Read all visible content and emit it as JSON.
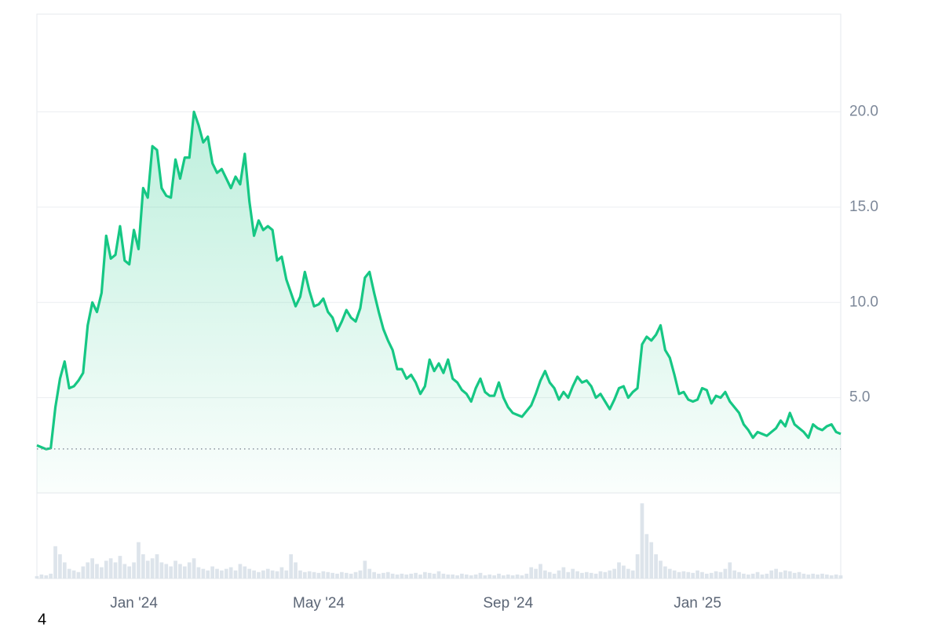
{
  "chart_data": {
    "type": "line",
    "categories": [
      null,
      null,
      null,
      null,
      null,
      null,
      null,
      null,
      null,
      null,
      null,
      null,
      null,
      null,
      null,
      null,
      null,
      null,
      null,
      null,
      null,
      "Jan '24",
      null,
      null,
      null,
      null,
      null,
      null,
      null,
      null,
      null,
      null,
      null,
      null,
      null,
      null,
      null,
      null,
      null,
      null,
      null,
      null,
      null,
      null,
      null,
      null,
      null,
      null,
      null,
      null,
      null,
      null,
      null,
      null,
      null,
      null,
      null,
      null,
      null,
      null,
      null,
      "May '24",
      null,
      null,
      null,
      null,
      null,
      null,
      null,
      null,
      null,
      null,
      null,
      null,
      null,
      null,
      null,
      null,
      null,
      null,
      null,
      null,
      null,
      null,
      null,
      null,
      null,
      null,
      null,
      null,
      null,
      null,
      null,
      null,
      null,
      null,
      null,
      null,
      null,
      null,
      null,
      null,
      "Sep '24",
      null,
      null,
      null,
      null,
      null,
      null,
      null,
      null,
      null,
      null,
      null,
      null,
      null,
      null,
      null,
      null,
      null,
      null,
      null,
      null,
      null,
      null,
      null,
      null,
      null,
      null,
      null,
      null,
      null,
      null,
      null,
      null,
      null,
      null,
      null,
      null,
      null,
      null,
      null,
      null,
      "Jan '25",
      null,
      null,
      null,
      null,
      null,
      null,
      null,
      null,
      null,
      null,
      null,
      null,
      null,
      null,
      null,
      null,
      null,
      null,
      null,
      null,
      null,
      null,
      null,
      null,
      null,
      null,
      null,
      null,
      null,
      null,
      null
    ],
    "series": [
      {
        "color": "#16c784",
        "values": [
          2.5,
          2.4,
          2.3,
          2.35,
          4.5,
          6.0,
          6.9,
          5.5,
          5.6,
          5.9,
          6.3,
          8.8,
          10.0,
          9.5,
          10.5,
          13.5,
          12.3,
          12.5,
          14.0,
          12.2,
          12.0,
          13.8,
          12.8,
          16.0,
          15.5,
          18.2,
          18.0,
          16.0,
          15.6,
          15.5,
          17.5,
          16.5,
          17.6,
          17.6,
          20.0,
          19.3,
          18.4,
          18.7,
          17.3,
          16.8,
          17.0,
          16.5,
          16.0,
          16.6,
          16.2,
          17.8,
          15.3,
          13.5,
          14.3,
          13.8,
          14.0,
          13.8,
          12.2,
          12.4,
          11.2,
          10.5,
          9.8,
          10.3,
          11.6,
          10.6,
          9.8,
          9.9,
          10.2,
          9.5,
          9.2,
          8.5,
          9.0,
          9.6,
          9.2,
          9.0,
          9.7,
          11.3,
          11.6,
          10.5,
          9.5,
          8.6,
          8.0,
          7.5,
          6.5,
          6.5,
          6.0,
          6.2,
          5.8,
          5.2,
          5.6,
          7.0,
          6.4,
          6.8,
          6.3,
          7.0,
          6.0,
          5.8,
          5.4,
          5.2,
          4.8,
          5.5,
          6.0,
          5.3,
          5.1,
          5.1,
          5.8,
          5.0,
          4.5,
          4.2,
          4.1,
          4.0,
          4.3,
          4.6,
          5.2,
          5.9,
          6.4,
          5.8,
          5.5,
          4.9,
          5.3,
          5.0,
          5.6,
          6.1,
          5.8,
          5.9,
          5.6,
          5.0,
          5.2,
          4.8,
          4.4,
          4.9,
          5.5,
          5.6,
          5.0,
          5.3,
          5.5,
          7.8,
          8.2,
          8.0,
          8.3,
          8.8,
          7.5,
          7.1,
          6.2,
          5.2,
          5.3,
          4.9,
          4.8,
          4.9,
          5.5,
          5.4,
          4.7,
          5.1,
          5.0,
          5.3,
          4.8,
          4.5,
          4.2,
          3.6,
          3.3,
          2.9,
          3.2,
          3.1,
          3.0,
          3.2,
          3.4,
          3.8,
          3.5,
          4.2,
          3.6,
          3.4,
          3.2,
          2.9,
          3.6,
          3.4,
          3.3,
          3.5,
          3.6,
          3.2,
          3.1
        ]
      },
      {
        "color": "#dde4eb",
        "axis": "y2",
        "values": [
          3,
          5,
          4,
          6,
          40,
          30,
          20,
          12,
          10,
          8,
          15,
          20,
          25,
          18,
          14,
          22,
          25,
          20,
          28,
          18,
          15,
          20,
          45,
          30,
          22,
          25,
          30,
          20,
          18,
          15,
          22,
          18,
          15,
          20,
          25,
          14,
          12,
          10,
          15,
          12,
          10,
          12,
          14,
          10,
          18,
          15,
          12,
          10,
          8,
          10,
          12,
          10,
          9,
          14,
          10,
          30,
          20,
          10,
          8,
          9,
          8,
          7,
          9,
          8,
          7,
          6,
          8,
          7,
          6,
          8,
          10,
          22,
          12,
          8,
          6,
          7,
          8,
          6,
          5,
          6,
          5,
          6,
          7,
          5,
          8,
          7,
          6,
          9,
          6,
          5,
          5,
          4,
          6,
          5,
          4,
          5,
          7,
          4,
          5,
          4,
          6,
          4,
          5,
          4,
          5,
          4,
          6,
          14,
          12,
          18,
          10,
          8,
          6,
          10,
          14,
          8,
          12,
          9,
          7,
          8,
          7,
          6,
          9,
          8,
          10,
          12,
          20,
          16,
          12,
          10,
          30,
          93,
          55,
          45,
          30,
          22,
          15,
          12,
          10,
          8,
          9,
          8,
          7,
          10,
          8,
          6,
          7,
          9,
          8,
          12,
          20,
          10,
          8,
          6,
          5,
          6,
          8,
          5,
          6,
          10,
          12,
          8,
          10,
          9,
          7,
          8,
          6,
          5,
          6,
          5,
          6,
          5,
          4,
          5,
          4
        ]
      }
    ],
    "ylim": [
      0,
      25.13
    ],
    "yticks": [
      {
        "value": 5,
        "label": "5.0"
      },
      {
        "value": 10,
        "label": "10.0"
      },
      {
        "value": 15,
        "label": "15.0"
      },
      {
        "value": 20,
        "label": "20.0"
      }
    ],
    "y2lim": [
      0,
      100
    ],
    "reference_line": 2.31,
    "grid": true,
    "footer_text": "4"
  }
}
